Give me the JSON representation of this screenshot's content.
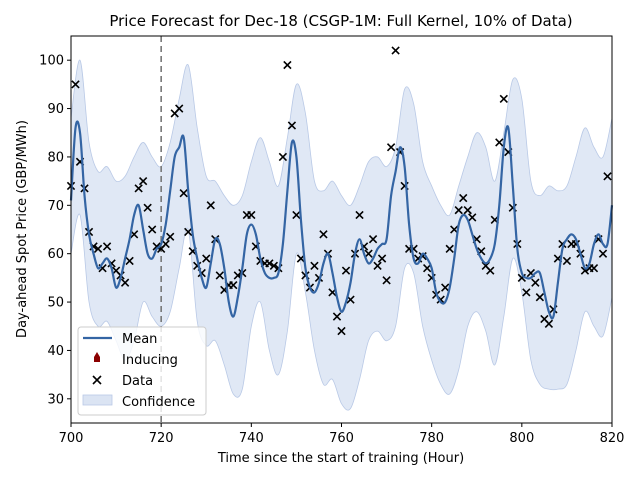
{
  "chart_data": {
    "type": "line",
    "title": "Price Forecast for Dec-18 (CSGP-1M: Full Kernel, 10% of Data)",
    "xlabel": "Time since the start of training (Hour)",
    "ylabel": "Day-ahead Spot Price (GBP/MWh)",
    "xlim": [
      700,
      820
    ],
    "ylim": [
      25,
      105
    ],
    "xticks": [
      700,
      720,
      740,
      760,
      780,
      800,
      820
    ],
    "yticks": [
      30,
      40,
      50,
      60,
      70,
      80,
      90,
      100
    ],
    "grid": false,
    "legend_position": "lower-left",
    "vline_x": 720,
    "legend": {
      "mean": "Mean",
      "inducing": "Inducing",
      "data": "Data",
      "confidence": "Confidence"
    },
    "colors": {
      "mean": "#3465a4",
      "confidence_fill": "#dbe4f3",
      "confidence_edge": "#b9c9e6",
      "data": "#000000",
      "inducing": "#8b0000",
      "vline": "#777777"
    },
    "series": [
      {
        "name": "Mean",
        "x": [
          700,
          701,
          702,
          703,
          704,
          705,
          706,
          707,
          708,
          709,
          710,
          711,
          712,
          713,
          714,
          715,
          716,
          717,
          718,
          719,
          720,
          721,
          722,
          723,
          724,
          725,
          726,
          727,
          728,
          729,
          730,
          731,
          732,
          733,
          734,
          735,
          736,
          737,
          738,
          739,
          740,
          741,
          742,
          743,
          744,
          745,
          746,
          747,
          748,
          749,
          750,
          751,
          752,
          753,
          754,
          755,
          756,
          757,
          758,
          759,
          760,
          761,
          762,
          763,
          764,
          765,
          766,
          767,
          768,
          769,
          770,
          771,
          772,
          773,
          774,
          775,
          776,
          777,
          778,
          779,
          780,
          781,
          782,
          783,
          784,
          785,
          786,
          787,
          788,
          789,
          790,
          791,
          792,
          793,
          794,
          795,
          796,
          797,
          798,
          799,
          800,
          801,
          802,
          803,
          804,
          805,
          806,
          807,
          808,
          809,
          810,
          811,
          812,
          813,
          814,
          815,
          816,
          817,
          818,
          819,
          820
        ],
        "values": [
          71,
          86,
          85,
          72,
          64,
          60,
          57,
          58,
          59,
          57,
          53,
          55,
          59,
          63,
          68,
          70,
          65,
          60,
          59,
          61,
          62,
          66,
          73,
          80,
          82,
          84,
          73,
          64,
          59,
          55,
          53,
          58,
          63,
          62,
          57,
          50,
          47,
          51,
          57,
          64,
          66,
          64,
          59,
          56,
          55,
          55,
          56,
          62,
          73,
          83,
          80,
          67,
          57,
          53,
          52,
          54,
          58,
          60,
          56,
          51,
          48,
          50,
          54,
          60,
          63,
          60,
          58,
          59,
          61,
          62,
          63,
          72,
          77,
          82,
          78,
          66,
          59,
          58,
          60,
          59,
          57,
          52,
          50,
          50,
          53,
          59,
          66,
          68,
          67,
          64,
          61,
          59,
          58,
          59,
          62,
          70,
          82,
          86,
          74,
          61,
          56,
          55,
          55,
          56,
          56,
          52,
          48,
          47,
          54,
          61,
          63,
          64,
          63,
          60,
          57,
          58,
          62,
          64,
          62,
          62,
          70
        ]
      },
      {
        "name": "Data",
        "points": [
          {
            "x": 700,
            "y": 74
          },
          {
            "x": 701,
            "y": 95
          },
          {
            "x": 702,
            "y": 79
          },
          {
            "x": 703,
            "y": 73.5
          },
          {
            "x": 704,
            "y": 64.5
          },
          {
            "x": 705,
            "y": 61.5
          },
          {
            "x": 706,
            "y": 61
          },
          {
            "x": 707,
            "y": 57
          },
          {
            "x": 708,
            "y": 61.5
          },
          {
            "x": 709,
            "y": 58
          },
          {
            "x": 710,
            "y": 56.5
          },
          {
            "x": 711,
            "y": 55.5
          },
          {
            "x": 712,
            "y": 54
          },
          {
            "x": 713,
            "y": 58.5
          },
          {
            "x": 714,
            "y": 64
          },
          {
            "x": 715,
            "y": 73.5
          },
          {
            "x": 716,
            "y": 75
          },
          {
            "x": 717,
            "y": 69.5
          },
          {
            "x": 718,
            "y": 65
          },
          {
            "x": 719,
            "y": 61.5
          },
          {
            "x": 720,
            "y": 61
          },
          {
            "x": 721,
            "y": 62
          },
          {
            "x": 722,
            "y": 63.5
          },
          {
            "x": 723,
            "y": 89
          },
          {
            "x": 724,
            "y": 90
          },
          {
            "x": 725,
            "y": 72.5
          },
          {
            "x": 726,
            "y": 64.5
          },
          {
            "x": 727,
            "y": 60.5
          },
          {
            "x": 728,
            "y": 57.5
          },
          {
            "x": 729,
            "y": 56
          },
          {
            "x": 730,
            "y": 59
          },
          {
            "x": 731,
            "y": 70
          },
          {
            "x": 732,
            "y": 63
          },
          {
            "x": 733,
            "y": 55.5
          },
          {
            "x": 734,
            "y": 52.5
          },
          {
            "x": 735,
            "y": 53.5
          },
          {
            "x": 736,
            "y": 53.5
          },
          {
            "x": 737,
            "y": 55.5
          },
          {
            "x": 738,
            "y": 56
          },
          {
            "x": 739,
            "y": 68
          },
          {
            "x": 740,
            "y": 68
          },
          {
            "x": 741,
            "y": 61.5
          },
          {
            "x": 742,
            "y": 58.5
          },
          {
            "x": 743,
            "y": 58
          },
          {
            "x": 744,
            "y": 58
          },
          {
            "x": 745,
            "y": 57.5
          },
          {
            "x": 746,
            "y": 57
          },
          {
            "x": 747,
            "y": 80
          },
          {
            "x": 748,
            "y": 99
          },
          {
            "x": 749,
            "y": 86.5
          },
          {
            "x": 750,
            "y": 68
          },
          {
            "x": 751,
            "y": 59
          },
          {
            "x": 752,
            "y": 55.5
          },
          {
            "x": 753,
            "y": 53
          },
          {
            "x": 754,
            "y": 57.5
          },
          {
            "x": 755,
            "y": 55
          },
          {
            "x": 756,
            "y": 64
          },
          {
            "x": 757,
            "y": 60
          },
          {
            "x": 758,
            "y": 52
          },
          {
            "x": 759,
            "y": 47
          },
          {
            "x": 760,
            "y": 44
          },
          {
            "x": 761,
            "y": 56.5
          },
          {
            "x": 762,
            "y": 50.5
          },
          {
            "x": 763,
            "y": 60
          },
          {
            "x": 764,
            "y": 68
          },
          {
            "x": 765,
            "y": 61.5
          },
          {
            "x": 766,
            "y": 60
          },
          {
            "x": 767,
            "y": 63
          },
          {
            "x": 768,
            "y": 57.5
          },
          {
            "x": 769,
            "y": 59
          },
          {
            "x": 770,
            "y": 54.5
          },
          {
            "x": 771,
            "y": 82
          },
          {
            "x": 772,
            "y": 102
          },
          {
            "x": 773,
            "y": 81
          },
          {
            "x": 774,
            "y": 74
          },
          {
            "x": 775,
            "y": 61
          },
          {
            "x": 776,
            "y": 61
          },
          {
            "x": 777,
            "y": 59
          },
          {
            "x": 778,
            "y": 59.5
          },
          {
            "x": 779,
            "y": 57
          },
          {
            "x": 780,
            "y": 55
          },
          {
            "x": 781,
            "y": 51.5
          },
          {
            "x": 782,
            "y": 50.5
          },
          {
            "x": 783,
            "y": 53
          },
          {
            "x": 784,
            "y": 61
          },
          {
            "x": 785,
            "y": 65
          },
          {
            "x": 786,
            "y": 69
          },
          {
            "x": 787,
            "y": 71.5
          },
          {
            "x": 788,
            "y": 69
          },
          {
            "x": 789,
            "y": 67.5
          },
          {
            "x": 790,
            "y": 63
          },
          {
            "x": 791,
            "y": 60.5
          },
          {
            "x": 792,
            "y": 57.5
          },
          {
            "x": 793,
            "y": 56.5
          },
          {
            "x": 794,
            "y": 67
          },
          {
            "x": 795,
            "y": 83
          },
          {
            "x": 796,
            "y": 92
          },
          {
            "x": 797,
            "y": 81
          },
          {
            "x": 798,
            "y": 69.5
          },
          {
            "x": 799,
            "y": 62
          },
          {
            "x": 800,
            "y": 55
          },
          {
            "x": 801,
            "y": 52
          },
          {
            "x": 802,
            "y": 56
          },
          {
            "x": 803,
            "y": 54
          },
          {
            "x": 804,
            "y": 51
          },
          {
            "x": 805,
            "y": 46.5
          },
          {
            "x": 806,
            "y": 45.5
          },
          {
            "x": 807,
            "y": 48.5
          },
          {
            "x": 808,
            "y": 59
          },
          {
            "x": 809,
            "y": 62
          },
          {
            "x": 810,
            "y": 58.5
          },
          {
            "x": 811,
            "y": 62
          },
          {
            "x": 812,
            "y": 62
          },
          {
            "x": 813,
            "y": 60
          },
          {
            "x": 814,
            "y": 56.5
          },
          {
            "x": 815,
            "y": 57
          },
          {
            "x": 816,
            "y": 57
          },
          {
            "x": 817,
            "y": 63
          },
          {
            "x": 818,
            "y": 60
          },
          {
            "x": 819,
            "y": 76
          }
        ]
      },
      {
        "name": "Confidence",
        "x": [
          700,
          702,
          704,
          706,
          708,
          710,
          712,
          714,
          716,
          718,
          720,
          722,
          724,
          726,
          728,
          730,
          732,
          734,
          736,
          738,
          740,
          742,
          744,
          746,
          748,
          750,
          752,
          754,
          756,
          758,
          760,
          762,
          764,
          766,
          768,
          770,
          772,
          774,
          776,
          778,
          780,
          782,
          784,
          786,
          788,
          790,
          792,
          794,
          796,
          798,
          800,
          802,
          804,
          806,
          808,
          810,
          812,
          814,
          816,
          818,
          820
        ],
        "upper": [
          88,
          100,
          83,
          77,
          78,
          75,
          76,
          80,
          83,
          80,
          78,
          83,
          92,
          99,
          86,
          76,
          75,
          72,
          70,
          72,
          79,
          84,
          79,
          74,
          84,
          95,
          89,
          75,
          73,
          75,
          72,
          70,
          74,
          79,
          80,
          78,
          82,
          94,
          91,
          79,
          74,
          70,
          68,
          74,
          80,
          85,
          82,
          75,
          85,
          96,
          92,
          75,
          72,
          74,
          73,
          74,
          80,
          86,
          82,
          80,
          88
        ],
        "lower": [
          60,
          68,
          50,
          45,
          46,
          42,
          38,
          42,
          50,
          47,
          45,
          48,
          57,
          65,
          46,
          41,
          42,
          37,
          31,
          32,
          45,
          50,
          40,
          35,
          44,
          60,
          52,
          40,
          33,
          34,
          29,
          28,
          34,
          42,
          44,
          42,
          45,
          57,
          56,
          45,
          38,
          33,
          31,
          36,
          45,
          48,
          44,
          37,
          47,
          59,
          52,
          38,
          33,
          32,
          32,
          33,
          40,
          48,
          45,
          43,
          51
        ]
      }
    ]
  }
}
